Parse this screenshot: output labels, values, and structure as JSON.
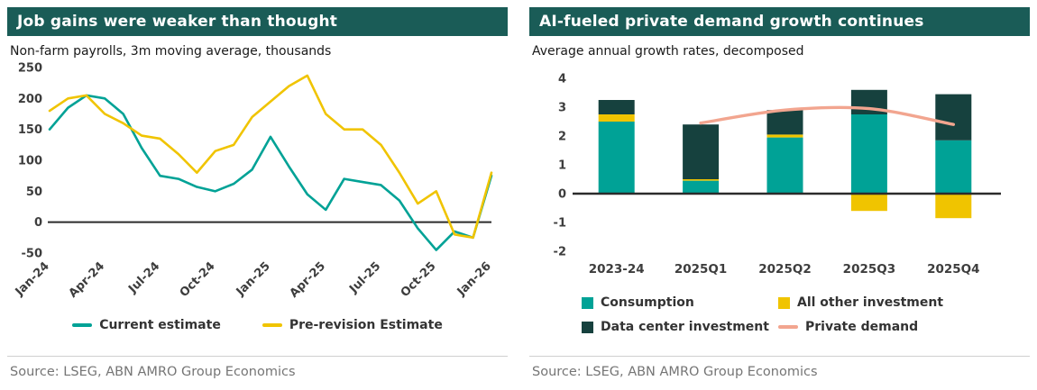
{
  "colors": {
    "header_bg": "#1A5C57",
    "teal": "#00A296",
    "yellow": "#F0C400",
    "dark_teal": "#16413E",
    "salmon": "#F2A58F",
    "axis_text": "#3D3D3D",
    "zero_line": "#2B2B2B",
    "divider": "#CFCFCF",
    "source_text": "#757575"
  },
  "left_panel": {
    "title": "Job gains were weaker than thought",
    "subtitle": "Non-farm payrolls, 3m moving average, thousands",
    "source": "Source: LSEG, ABN AMRO Group Economics",
    "legend": [
      {
        "label": "Current estimate",
        "color": "#00A296",
        "swatch": "line"
      },
      {
        "label": "Pre-revision Estimate",
        "color": "#F0C400",
        "swatch": "line"
      }
    ]
  },
  "right_panel": {
    "title": "AI-fueled private demand growth continues",
    "subtitle": "Average annual growth rates, decomposed",
    "source": "Source: LSEG, ABN AMRO Group Economics",
    "legend": [
      {
        "label": "Consumption",
        "color": "#00A296",
        "swatch": "square"
      },
      {
        "label": "All other investment",
        "color": "#F0C400",
        "swatch": "square"
      },
      {
        "label": "Data center investment",
        "color": "#16413E",
        "swatch": "square"
      },
      {
        "label": "Private demand",
        "color": "#F2A58F",
        "swatch": "line"
      }
    ]
  },
  "chart_data": [
    {
      "type": "line",
      "title": "Job gains were weaker than thought",
      "subtitle": "Non-farm payrolls, 3m moving average, thousands",
      "x": [
        "Jan-24",
        "Feb-24",
        "Mar-24",
        "Apr-24",
        "May-24",
        "Jun-24",
        "Jul-24",
        "Aug-24",
        "Sep-24",
        "Oct-24",
        "Nov-24",
        "Dec-24",
        "Jan-25",
        "Feb-25",
        "Mar-25",
        "Apr-25",
        "May-25",
        "Jun-25",
        "Jul-25",
        "Aug-25",
        "Sep-25",
        "Oct-25",
        "Nov-25",
        "Dec-25",
        "Jan-26"
      ],
      "x_tick_indices": [
        0,
        3,
        6,
        9,
        12,
        15,
        18,
        21,
        24
      ],
      "x_tick_labels": [
        "Jan-24",
        "Apr-24",
        "Jul-24",
        "Oct-24",
        "Jan-25",
        "Apr-25",
        "Jul-25",
        "Oct-25",
        "Jan-26"
      ],
      "ylim": [
        -50,
        250
      ],
      "y_ticks": [
        250,
        200,
        150,
        100,
        50,
        0,
        -50
      ],
      "grid": false,
      "legend_position": "bottom",
      "series": [
        {
          "name": "Current estimate",
          "color": "#00A296",
          "values": [
            150,
            185,
            205,
            200,
            175,
            120,
            75,
            70,
            57,
            50,
            62,
            85,
            138,
            90,
            45,
            20,
            70,
            65,
            60,
            35,
            -10,
            -45,
            -15,
            -25,
            75
          ]
        },
        {
          "name": "Pre-revision Estimate",
          "color": "#F0C400",
          "values": [
            180,
            200,
            205,
            175,
            160,
            140,
            135,
            110,
            80,
            115,
            125,
            170,
            195,
            220,
            237,
            175,
            150,
            150,
            125,
            80,
            30,
            50,
            -20,
            -25,
            80
          ]
        }
      ]
    },
    {
      "type": "bar",
      "subtype": "stacked-with-line",
      "title": "AI-fueled private demand growth continues",
      "subtitle": "Average annual growth rates, decomposed",
      "categories": [
        "2023-24",
        "2025Q1",
        "2025Q2",
        "2025Q3",
        "2025Q4"
      ],
      "ylim": [
        -2,
        4
      ],
      "y_ticks": [
        4,
        3,
        2,
        1,
        0,
        -1,
        -2
      ],
      "grid": false,
      "legend_position": "bottom",
      "bar_series": [
        {
          "name": "Consumption",
          "color": "#00A296",
          "values": [
            2.5,
            0.45,
            1.95,
            2.75,
            1.85
          ]
        },
        {
          "name": "All other investment",
          "color": "#F0C400",
          "values": [
            0.25,
            0.05,
            0.1,
            -0.6,
            -0.85
          ]
        },
        {
          "name": "Data center investment",
          "color": "#16413E",
          "values": [
            0.5,
            1.9,
            0.85,
            0.85,
            1.6
          ]
        }
      ],
      "line_series": [
        {
          "name": "Private demand",
          "color": "#F2A58F",
          "values": [
            null,
            2.45,
            2.9,
            2.95,
            2.4
          ]
        }
      ]
    }
  ]
}
